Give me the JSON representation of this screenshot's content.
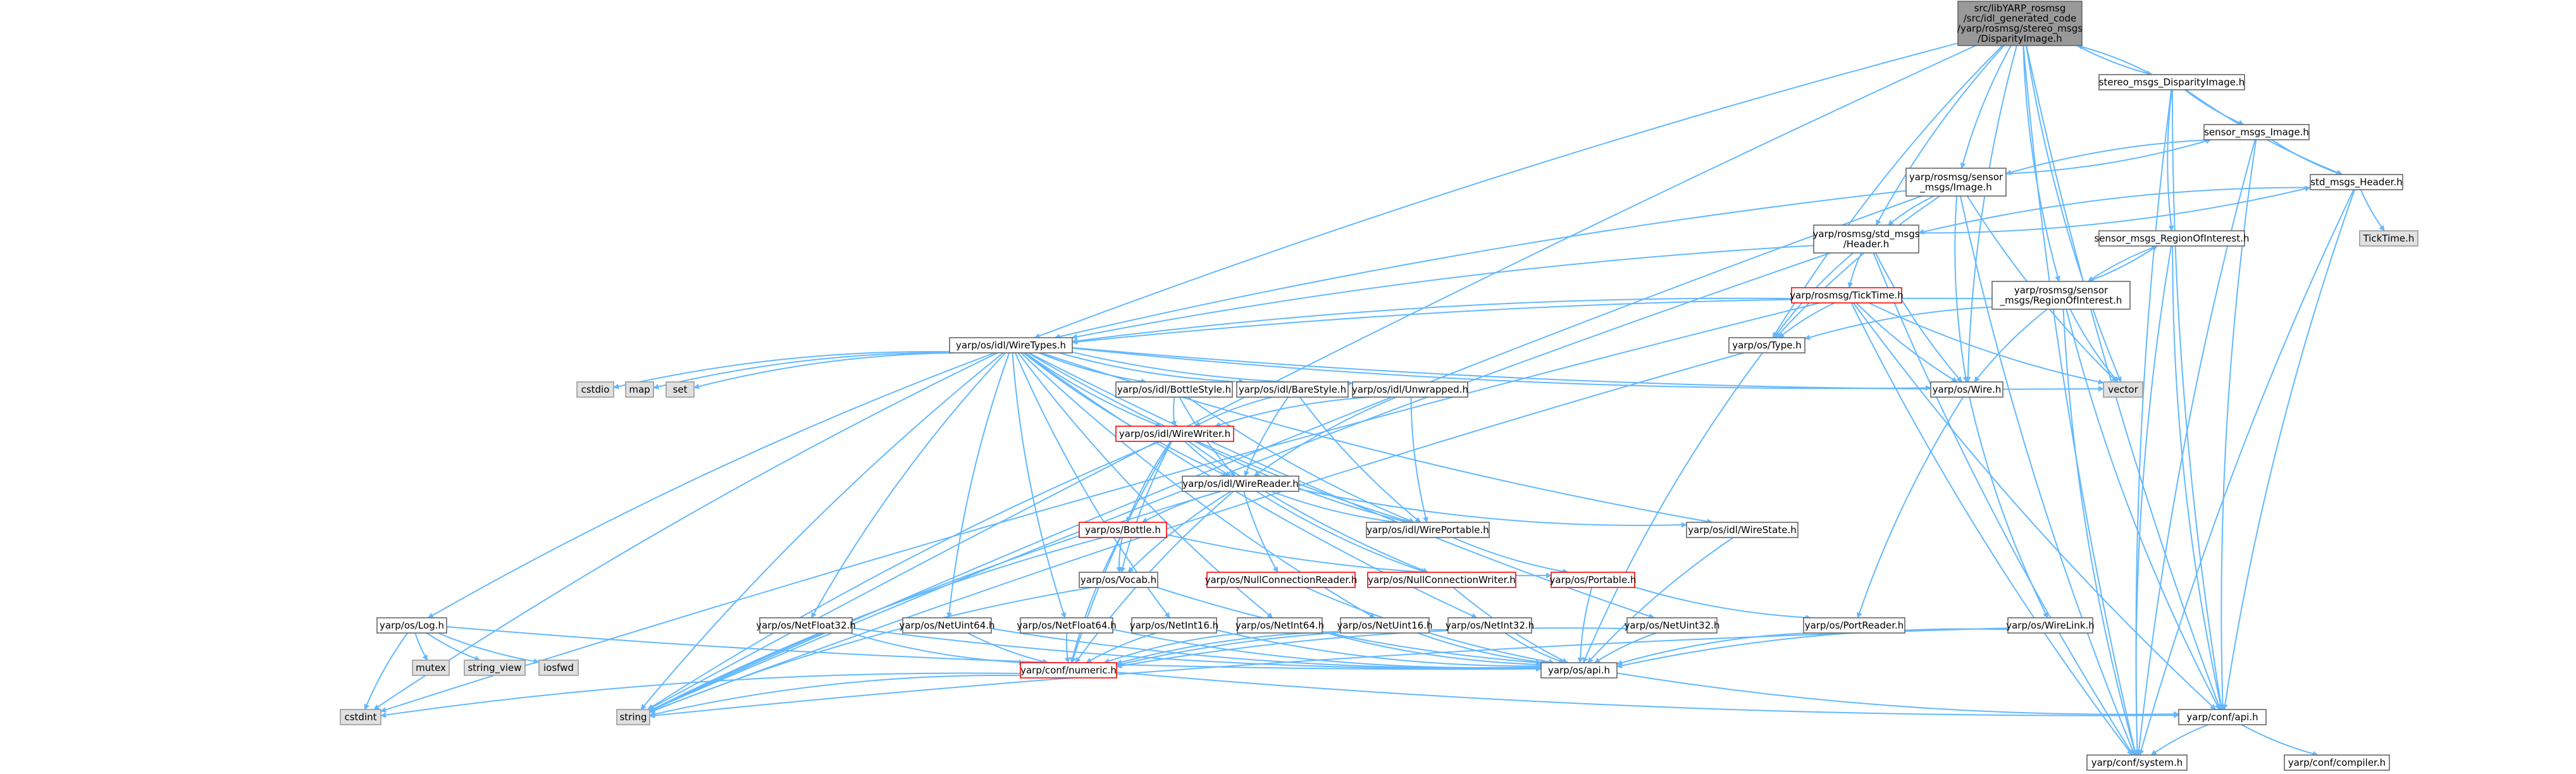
{
  "colors": {
    "edge": "#63b8ff",
    "border": "#666666",
    "border_red": "#ff0000",
    "focus_fill": "#999999",
    "header_fill": "#ffffff",
    "system_fill": "#e0e0e0",
    "system_border": "#999999",
    "text": "#000000"
  },
  "nodes": {
    "focus": {
      "lines": [
        "src/libYARP_rosmsg",
        "/src/idl_generated_code",
        "/yarp/rosmsg/stereo_msgs",
        "/DisparityImage.h"
      ]
    },
    "stereo": {
      "lines": [
        "stereo_msgs_DisparityImage.h"
      ]
    },
    "sensor_image_h": {
      "lines": [
        "sensor_msgs_Image.h"
      ]
    },
    "ros_sensor_image": {
      "lines": [
        "yarp/rosmsg/sensor",
        "_msgs/Image.h"
      ]
    },
    "std_header": {
      "lines": [
        "std_msgs_Header.h"
      ]
    },
    "ticktime_short": {
      "lines": [
        "TickTime.h"
      ]
    },
    "ros_std_header": {
      "lines": [
        "yarp/rosmsg/std_msgs",
        "/Header.h"
      ]
    },
    "sensor_roi": {
      "lines": [
        "sensor_msgs_RegionOfInterest.h"
      ]
    },
    "ros_roi": {
      "lines": [
        "yarp/rosmsg/sensor",
        "_msgs/RegionOfInterest.h"
      ]
    },
    "ros_ticktime": {
      "lines": [
        "yarp/rosmsg/TickTime.h"
      ]
    },
    "wiretypes": {
      "lines": [
        "yarp/os/idl/WireTypes.h"
      ]
    },
    "type_h": {
      "lines": [
        "yarp/os/Type.h"
      ]
    },
    "vector": {
      "lines": [
        "vector"
      ]
    },
    "wire_h": {
      "lines": [
        "yarp/os/Wire.h"
      ]
    },
    "cstdio": {
      "lines": [
        "cstdio"
      ]
    },
    "map": {
      "lines": [
        "map"
      ]
    },
    "set": {
      "lines": [
        "set"
      ]
    },
    "bottlestyle": {
      "lines": [
        "yarp/os/idl/BottleStyle.h"
      ]
    },
    "barestyle": {
      "lines": [
        "yarp/os/idl/BareStyle.h"
      ]
    },
    "unwrapped": {
      "lines": [
        "yarp/os/idl/Unwrapped.h"
      ]
    },
    "wirewriter": {
      "lines": [
        "yarp/os/idl/WireWriter.h"
      ]
    },
    "wirereader": {
      "lines": [
        "yarp/os/idl/WireReader.h"
      ]
    },
    "bottle": {
      "lines": [
        "yarp/os/Bottle.h"
      ]
    },
    "wireportable": {
      "lines": [
        "yarp/os/idl/WirePortable.h"
      ]
    },
    "wirestate": {
      "lines": [
        "yarp/os/idl/WireState.h"
      ]
    },
    "vocab": {
      "lines": [
        "yarp/os/Vocab.h"
      ]
    },
    "nullconnreader": {
      "lines": [
        "yarp/os/NullConnectionReader.h"
      ]
    },
    "nullconnwriter": {
      "lines": [
        "yarp/os/NullConnectionWriter.h"
      ]
    },
    "portable": {
      "lines": [
        "yarp/os/Portable.h"
      ]
    },
    "log": {
      "lines": [
        "yarp/os/Log.h"
      ]
    },
    "netfloat32": {
      "lines": [
        "yarp/os/NetFloat32.h"
      ]
    },
    "netuint64": {
      "lines": [
        "yarp/os/NetUint64.h"
      ]
    },
    "netfloat64": {
      "lines": [
        "yarp/os/NetFloat64.h"
      ]
    },
    "netint16": {
      "lines": [
        "yarp/os/NetInt16.h"
      ]
    },
    "netint64": {
      "lines": [
        "yarp/os/NetInt64.h"
      ]
    },
    "netuint16": {
      "lines": [
        "yarp/os/NetUint16.h"
      ]
    },
    "netint32": {
      "lines": [
        "yarp/os/NetInt32.h"
      ]
    },
    "netuint32": {
      "lines": [
        "yarp/os/NetUint32.h"
      ]
    },
    "portreader": {
      "lines": [
        "yarp/os/PortReader.h"
      ]
    },
    "wirelink": {
      "lines": [
        "yarp/os/WireLink.h"
      ]
    },
    "mutex": {
      "lines": [
        "mutex"
      ]
    },
    "string_view": {
      "lines": [
        "string_view"
      ]
    },
    "iosfwd": {
      "lines": [
        "iosfwd"
      ]
    },
    "numeric": {
      "lines": [
        "yarp/conf/numeric.h"
      ]
    },
    "api": {
      "lines": [
        "yarp/os/api.h"
      ]
    },
    "cstdint": {
      "lines": [
        "cstdint"
      ]
    },
    "string": {
      "lines": [
        "string"
      ]
    },
    "conf_api": {
      "lines": [
        "yarp/conf/api.h"
      ]
    },
    "system": {
      "lines": [
        "yarp/conf/system.h"
      ]
    },
    "compiler": {
      "lines": [
        "yarp/conf/compiler.h"
      ]
    }
  }
}
